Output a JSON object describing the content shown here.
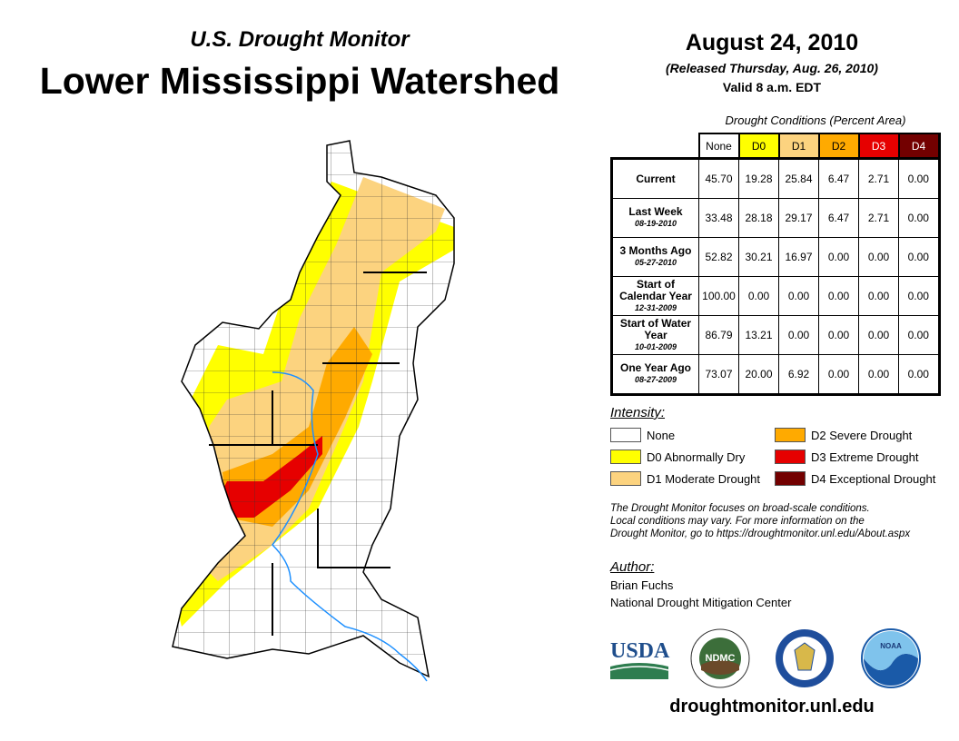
{
  "header": {
    "subtitle": "U.S. Drought Monitor",
    "title": "Lower Mississippi Watershed",
    "date": "August 24, 2010",
    "released": "(Released Thursday, Aug. 26, 2010)",
    "valid": "Valid 8 a.m. EDT"
  },
  "table": {
    "caption": "Drought Conditions (Percent Area)",
    "columns": [
      {
        "label": "None",
        "color": "#ffffff",
        "text": "#000000"
      },
      {
        "label": "D0",
        "color": "#ffff00",
        "text": "#000000"
      },
      {
        "label": "D1",
        "color": "#fcd37f",
        "text": "#000000"
      },
      {
        "label": "D2",
        "color": "#ffaa00",
        "text": "#000000"
      },
      {
        "label": "D3",
        "color": "#e60000",
        "text": "#ffffff"
      },
      {
        "label": "D4",
        "color": "#730000",
        "text": "#ffffff"
      }
    ],
    "rows": [
      {
        "label": "Current",
        "date": "",
        "values": [
          "45.70",
          "19.28",
          "25.84",
          "6.47",
          "2.71",
          "0.00"
        ]
      },
      {
        "label": "Last Week",
        "date": "08-19-2010",
        "values": [
          "33.48",
          "28.18",
          "29.17",
          "6.47",
          "2.71",
          "0.00"
        ]
      },
      {
        "label": "3 Months Ago",
        "date": "05-27-2010",
        "values": [
          "52.82",
          "30.21",
          "16.97",
          "0.00",
          "0.00",
          "0.00"
        ]
      },
      {
        "label": "Start of Calendar Year",
        "date": "12-31-2009",
        "values": [
          "100.00",
          "0.00",
          "0.00",
          "0.00",
          "0.00",
          "0.00"
        ]
      },
      {
        "label": "Start of Water Year",
        "date": "10-01-2009",
        "values": [
          "86.79",
          "13.21",
          "0.00",
          "0.00",
          "0.00",
          "0.00"
        ]
      },
      {
        "label": "One Year Ago",
        "date": "08-27-2009",
        "values": [
          "73.07",
          "20.00",
          "6.92",
          "0.00",
          "0.00",
          "0.00"
        ]
      }
    ]
  },
  "legend": {
    "title": "Intensity:",
    "items": [
      {
        "label": "None",
        "color": "#ffffff"
      },
      {
        "label": "D0 Abnormally Dry",
        "color": "#ffff00"
      },
      {
        "label": "D1 Moderate Drought",
        "color": "#fcd37f"
      },
      {
        "label": "D2 Severe Drought",
        "color": "#ffaa00"
      },
      {
        "label": "D3 Extreme Drought",
        "color": "#e60000"
      },
      {
        "label": "D4 Exceptional Drought",
        "color": "#730000"
      }
    ]
  },
  "note": [
    "The Drought Monitor focuses on broad-scale conditions.",
    "Local conditions may vary. For more information on the",
    "Drought Monitor, go to https://droughtmonitor.unl.edu/About.aspx"
  ],
  "author": {
    "title": "Author:",
    "name": "Brian Fuchs",
    "org": "National Drought Mitigation Center"
  },
  "logos": {
    "usda": "USDA",
    "ndmc": "NDMC",
    "noaa": "NOAA"
  },
  "footer": {
    "url": "droughtmonitor.unl.edu"
  }
}
